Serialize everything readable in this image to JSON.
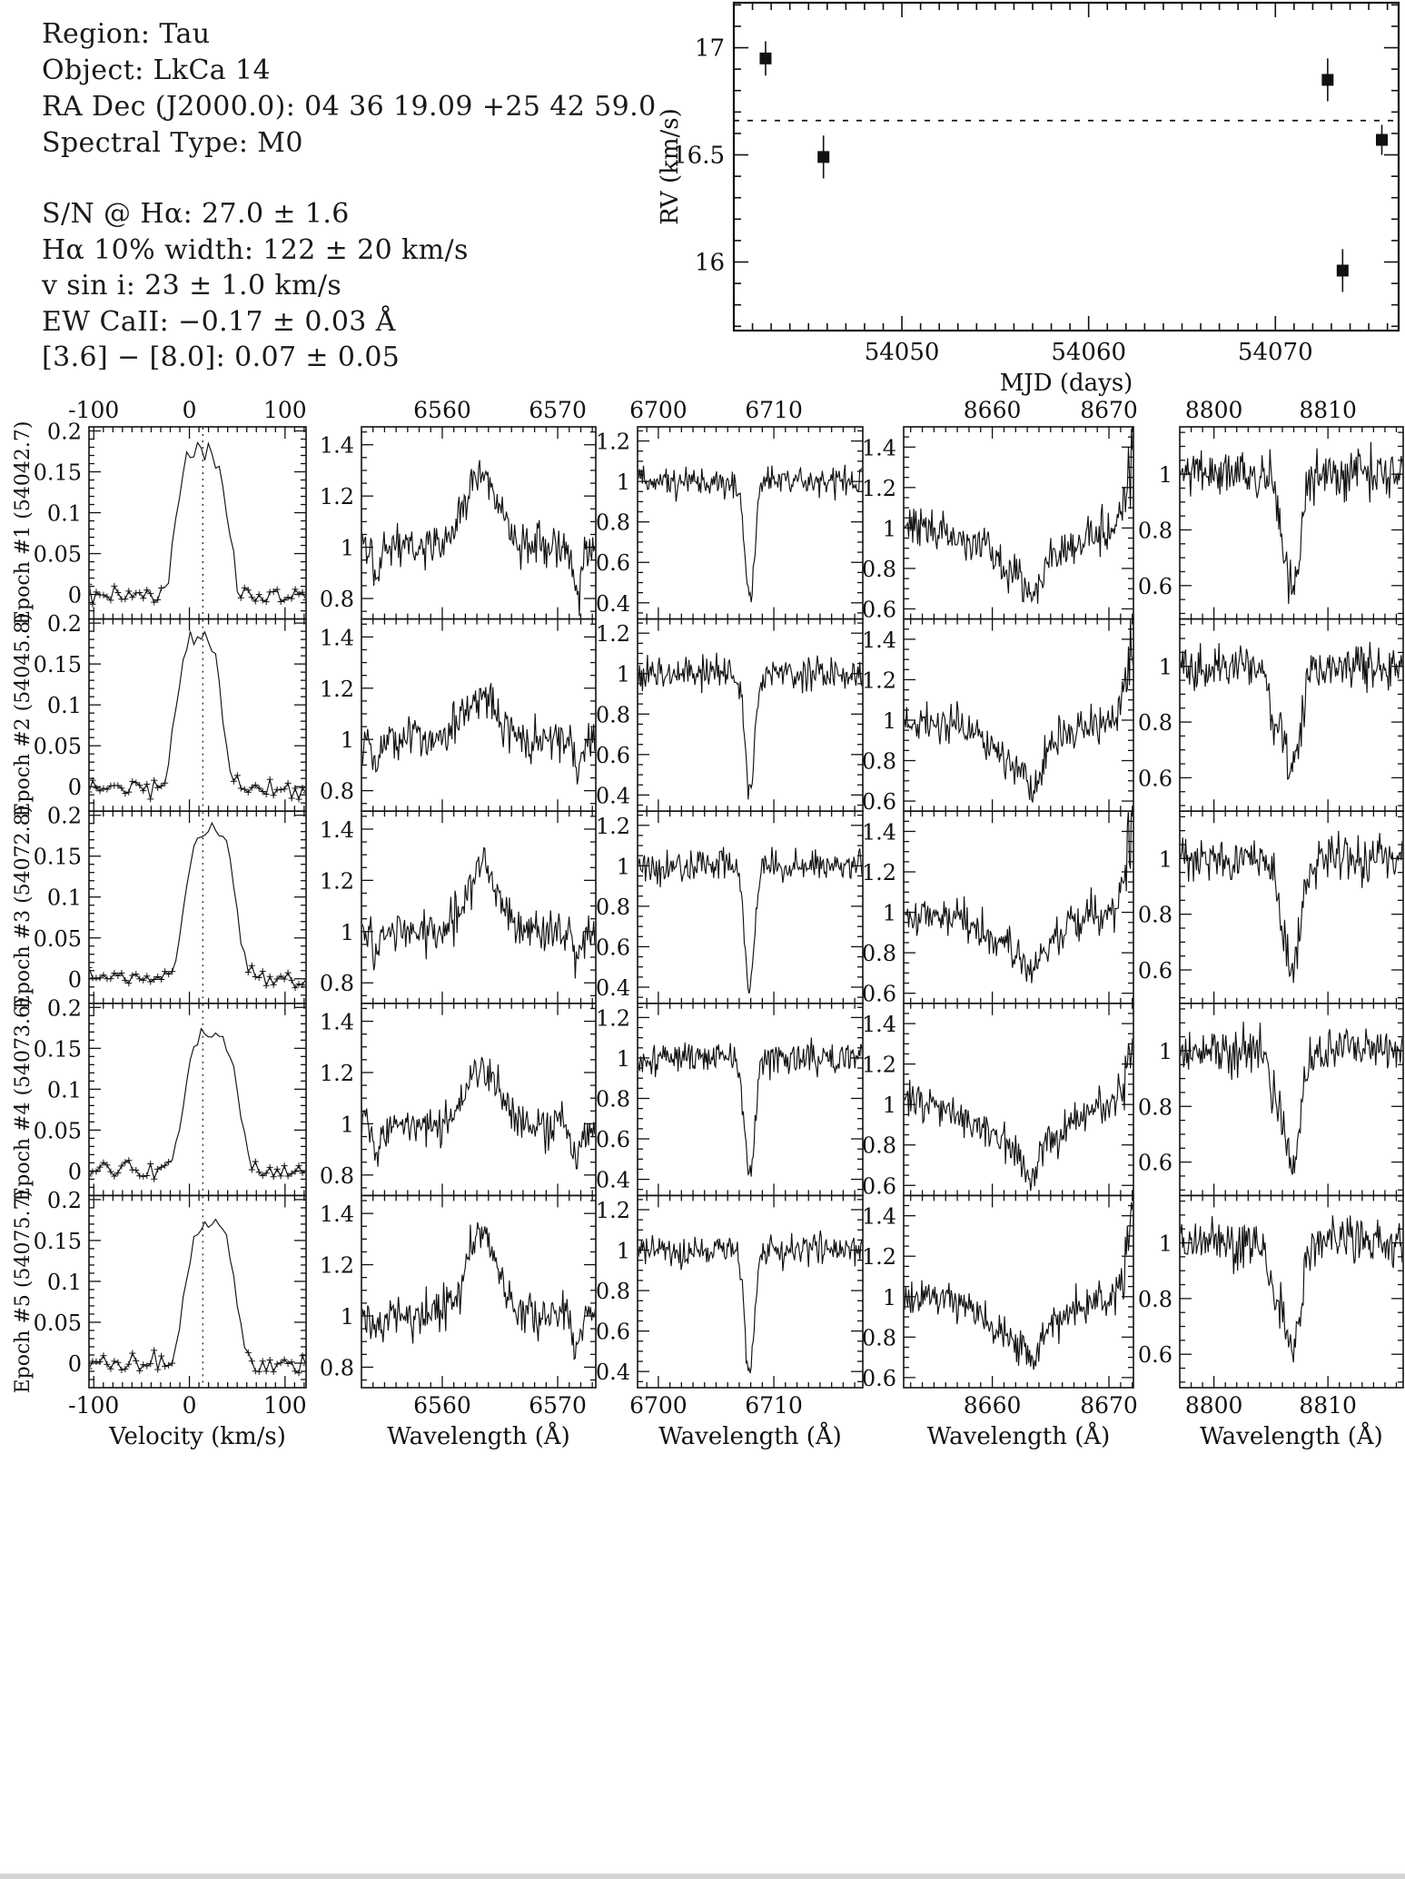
{
  "info": {
    "lines": [
      "Region: Tau",
      "Object: LkCa 14",
      "RA Dec (J2000.0): 04 36 19.09 +25 42 59.0",
      "Spectral Type: M0",
      "S/N @ Hα: 27.0 ± 1.6",
      "Hα 10% width: 122 ± 20 km/s",
      "v sin i: 23 ± 1.0 km/s",
      "EW CaII: −0.17 ± 0.03 Å",
      "[3.6] − [8.0]: 0.07 ± 0.05"
    ]
  },
  "colors": {
    "ink": "#111111",
    "background": "#ffffff"
  },
  "chart_data": [
    {
      "id": "rv_curve",
      "type": "scatter",
      "title": "",
      "xlabel": "MJD (days)",
      "ylabel": "RV (km/s)",
      "xlim": [
        54041.0,
        54076.6
      ],
      "ylim": [
        15.68,
        17.21
      ],
      "xticks_major": [
        54050,
        54060,
        54070
      ],
      "yticks_major": [
        16,
        16.5,
        17
      ],
      "minor_x_step": 1,
      "minor_y_step": 0.1,
      "mean_rv_line": 16.66,
      "points": [
        {
          "mjd": 54042.7,
          "rv": 16.95,
          "err": 0.08
        },
        {
          "mjd": 54045.8,
          "rv": 16.49,
          "err": 0.1
        },
        {
          "mjd": 54072.8,
          "rv": 16.85,
          "err": 0.1
        },
        {
          "mjd": 54073.6,
          "rv": 15.96,
          "err": 0.1
        },
        {
          "mjd": 54075.7,
          "rv": 16.57,
          "err": 0.07
        }
      ]
    },
    {
      "id": "epoch_spectra_grid",
      "type": "line",
      "rows": [
        {
          "epoch_label": "Epoch #1 (54042.7)",
          "mjd": 54042.7
        },
        {
          "epoch_label": "Epoch #2 (54045.8)",
          "mjd": 54045.8
        },
        {
          "epoch_label": "Epoch #3 (54072.8)",
          "mjd": 54072.8
        },
        {
          "epoch_label": "Epoch #4 (54073.6)",
          "mjd": 54073.6
        },
        {
          "epoch_label": "Epoch #5 (54075.7)",
          "mjd": 54075.7
        }
      ],
      "columns": [
        {
          "id": "halpha_velocity_profile",
          "xlabel": "Velocity (km/s)",
          "xlim": [
            -105,
            122
          ],
          "xticks": [
            -100,
            0,
            100
          ],
          "minor_x": 10,
          "major_x": 100,
          "ylim": [
            -0.03,
            0.205
          ],
          "yticks": [
            0.2,
            0.15,
            0.1,
            0.05,
            0
          ],
          "minor_y": 0.01,
          "major_y": 0.05,
          "dotted_vline": 14,
          "noise_sigma": 0.006,
          "profile": {
            "shape": "flat_top_emission",
            "center": [
              13,
              10,
              22,
              23,
              22
            ],
            "width": [
              30,
              27,
              30,
              32,
              30
            ],
            "peak": [
              0.175,
              0.185,
              0.18,
              0.165,
              0.17
            ]
          },
          "markers": "plus"
        },
        {
          "id": "halpha_spectrum_6563",
          "xlabel": "Wavelength (Å)",
          "xlim": [
            6553.0,
            6573.3
          ],
          "xticks": [
            6560,
            6570
          ],
          "minor_x": 1,
          "major_x": 10,
          "ylim": [
            0.72,
            1.47
          ],
          "yticks": [
            1.4,
            1.2,
            1,
            0.8
          ],
          "minor_y": 0.05,
          "major_y": 0.2,
          "continuum": 1.0,
          "noise_sigma": 0.042,
          "features": [
            {
              "type": "gauss",
              "center": 6563.4,
              "sigma": 1.4,
              "amp": [
                0.27,
                0.17,
                0.24,
                0.2,
                0.32
              ]
            },
            {
              "type": "gauss",
              "center": 6571.7,
              "sigma": 0.35,
              "amp": [
                -0.18,
                -0.12,
                -0.1,
                -0.13,
                -0.12
              ]
            },
            {
              "type": "gauss",
              "center": 6554.3,
              "sigma": 0.3,
              "amp": [
                -0.1,
                -0.1,
                -0.1,
                -0.1,
                -0.1
              ]
            }
          ]
        },
        {
          "id": "lithium_6708",
          "xlabel": "Wavelength (Å)",
          "xlim": [
            6698.2,
            6717.7
          ],
          "xticks": [
            6700,
            6710
          ],
          "minor_x": 1,
          "major_x": 10,
          "ylim": [
            0.32,
            1.27
          ],
          "yticks": [
            1.2,
            1,
            0.8,
            0.6,
            0.4
          ],
          "minor_y": 0.05,
          "major_y": 0.2,
          "continuum": 1.0,
          "noise_sigma": 0.038,
          "features": [
            {
              "type": "gauss",
              "center": 6707.9,
              "sigma": 0.42,
              "amp": [
                -0.6,
                -0.55,
                -0.62,
                -0.58,
                -0.6
              ]
            }
          ]
        },
        {
          "id": "caII_8662",
          "xlabel": "Wavelength (Å)",
          "xlim": [
            8652.4,
            8672.1
          ],
          "xticks": [
            8660,
            8670
          ],
          "minor_x": 1,
          "major_x": 10,
          "ylim": [
            0.55,
            1.5
          ],
          "yticks": [
            1.4,
            1.2,
            1,
            0.8,
            0.6
          ],
          "minor_y": 0.05,
          "major_y": 0.2,
          "continuum": 1.0,
          "noise_sigma": 0.05,
          "features": [
            {
              "type": "gauss",
              "center": 8662.6,
              "sigma": 3.0,
              "amp": [
                -0.2,
                -0.2,
                -0.18,
                -0.22,
                -0.2
              ]
            },
            {
              "type": "gauss",
              "center": 8663.4,
              "sigma": 0.7,
              "amp": [
                -0.13,
                -0.15,
                -0.12,
                -0.12,
                -0.13
              ]
            },
            {
              "type": "edge_spike",
              "start": 8670.3,
              "scale": [
                0.5,
                0.5,
                0.6,
                0.35,
                0.45
              ]
            }
          ]
        },
        {
          "id": "line_8807",
          "xlabel": "Wavelength (Å)",
          "xlim": [
            8797.0,
            8816.6
          ],
          "xticks": [
            8800,
            8810
          ],
          "minor_x": 1,
          "major_x": 10,
          "ylim": [
            0.48,
            1.17
          ],
          "yticks": [
            1,
            0.8,
            0.6
          ],
          "minor_y": 0.05,
          "major_y": 0.2,
          "continuum": 1.0,
          "noise_sigma": 0.042,
          "features": [
            {
              "type": "gauss",
              "center": 8806.8,
              "sigma": 0.75,
              "amp": [
                -0.42,
                -0.38,
                -0.4,
                -0.42,
                -0.4
              ]
            },
            {
              "type": "gauss",
              "center": 8805.2,
              "sigma": 0.4,
              "amp": [
                0,
                -0.18,
                0,
                -0.12,
                -0.15
              ]
            }
          ]
        }
      ]
    }
  ]
}
